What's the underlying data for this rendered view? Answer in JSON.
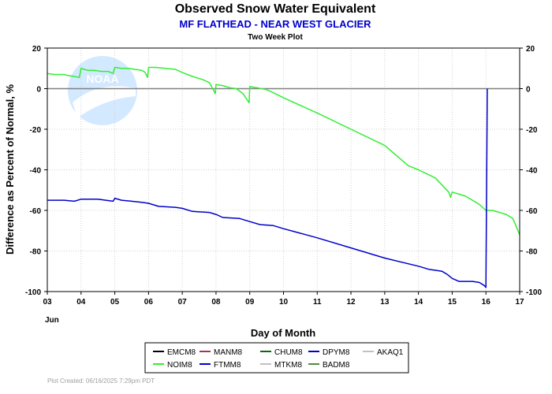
{
  "chart_data": {
    "type": "line",
    "title": "Observed Snow Water Equivalent",
    "subtitle": "MF FLATHEAD - NEAR WEST GLACIER",
    "caption": "Two Week Plot",
    "xlabel": "Day of Month",
    "x_month_label": "Jun",
    "ylabel": "Difference as Percent of Normal, %",
    "xlim": [
      3,
      17
    ],
    "ylim": [
      -100,
      20
    ],
    "x_ticks": [
      "03",
      "04",
      "05",
      "06",
      "07",
      "08",
      "09",
      "10",
      "11",
      "12",
      "13",
      "14",
      "15",
      "16",
      "17"
    ],
    "y_ticks": [
      20,
      0,
      -20,
      -40,
      -60,
      -80,
      -100
    ],
    "grid": true,
    "reference_line": 0,
    "colors": {
      "subtitle": "#0000cc",
      "zero_line": "#808080"
    },
    "series": [
      {
        "name": "NOIM8",
        "color": "#33ee33",
        "points": [
          [
            3.0,
            7.5
          ],
          [
            3.2,
            7.0
          ],
          [
            3.5,
            7.0
          ],
          [
            3.6,
            6.5
          ],
          [
            3.8,
            6.0
          ],
          [
            3.95,
            5.5
          ],
          [
            4.0,
            10.0
          ],
          [
            4.1,
            9.5
          ],
          [
            4.2,
            9.0
          ],
          [
            4.4,
            9.0
          ],
          [
            4.6,
            8.5
          ],
          [
            4.8,
            8.5
          ],
          [
            4.95,
            7.5
          ],
          [
            5.0,
            10.5
          ],
          [
            5.2,
            10.0
          ],
          [
            5.4,
            10.0
          ],
          [
            5.6,
            9.5
          ],
          [
            5.8,
            9.0
          ],
          [
            5.9,
            8.0
          ],
          [
            5.97,
            5.5
          ],
          [
            6.0,
            10.5
          ],
          [
            6.2,
            10.5
          ],
          [
            6.5,
            10.0
          ],
          [
            6.8,
            9.5
          ],
          [
            7.0,
            8.0
          ],
          [
            7.3,
            6.0
          ],
          [
            7.6,
            4.5
          ],
          [
            7.8,
            3.0
          ],
          [
            7.9,
            0.0
          ],
          [
            7.98,
            -2.5
          ],
          [
            8.0,
            2.0
          ],
          [
            8.2,
            1.5
          ],
          [
            8.4,
            0.5
          ],
          [
            8.6,
            0.0
          ],
          [
            8.8,
            -2.5
          ],
          [
            8.98,
            -7.0
          ],
          [
            9.0,
            1.0
          ],
          [
            9.2,
            0.5
          ],
          [
            9.5,
            -0.5
          ],
          [
            9.7,
            -2.0
          ],
          [
            10.0,
            -4.5
          ],
          [
            11.0,
            -12.0
          ],
          [
            12.0,
            -20.0
          ],
          [
            13.0,
            -28.0
          ],
          [
            13.7,
            -38.0
          ],
          [
            14.0,
            -40.0
          ],
          [
            14.5,
            -44.0
          ],
          [
            14.9,
            -51.0
          ],
          [
            14.95,
            -53.5
          ],
          [
            15.0,
            -51.0
          ],
          [
            15.2,
            -52.0
          ],
          [
            15.4,
            -53.0
          ],
          [
            15.6,
            -55.0
          ],
          [
            15.8,
            -57.0
          ],
          [
            16.0,
            -60.0
          ],
          [
            16.2,
            -60.0
          ],
          [
            16.4,
            -61.0
          ],
          [
            16.6,
            -62.0
          ],
          [
            16.8,
            -64.0
          ],
          [
            16.9,
            -68.0
          ],
          [
            17.0,
            -72.0
          ]
        ]
      },
      {
        "name": "FTMM8",
        "color": "#0000cc",
        "points": [
          [
            3.0,
            -55.0
          ],
          [
            3.5,
            -55.0
          ],
          [
            3.8,
            -55.5
          ],
          [
            4.0,
            -54.5
          ],
          [
            4.5,
            -54.5
          ],
          [
            4.95,
            -55.5
          ],
          [
            5.0,
            -54.0
          ],
          [
            5.2,
            -55.0
          ],
          [
            5.5,
            -55.5
          ],
          [
            5.8,
            -56.0
          ],
          [
            6.0,
            -56.5
          ],
          [
            6.3,
            -58.0
          ],
          [
            6.8,
            -58.5
          ],
          [
            7.0,
            -59.0
          ],
          [
            7.3,
            -60.5
          ],
          [
            7.8,
            -61.0
          ],
          [
            8.0,
            -62.0
          ],
          [
            8.2,
            -63.5
          ],
          [
            8.7,
            -64.0
          ],
          [
            9.0,
            -65.5
          ],
          [
            9.3,
            -67.0
          ],
          [
            9.7,
            -67.5
          ],
          [
            10.0,
            -69.0
          ],
          [
            11.0,
            -73.5
          ],
          [
            12.0,
            -78.5
          ],
          [
            13.0,
            -83.5
          ],
          [
            14.0,
            -87.5
          ],
          [
            14.3,
            -89.0
          ],
          [
            14.7,
            -90.0
          ],
          [
            14.85,
            -91.5
          ],
          [
            15.0,
            -93.5
          ],
          [
            15.2,
            -95.0
          ],
          [
            15.6,
            -95.0
          ],
          [
            15.8,
            -95.5
          ],
          [
            15.95,
            -97.0
          ],
          [
            16.0,
            -98.0
          ],
          [
            16.01,
            -75.0
          ],
          [
            16.03,
            -25.0
          ],
          [
            16.04,
            0.0
          ]
        ]
      }
    ],
    "legend": {
      "placement": "bottom",
      "entries": [
        {
          "name": "EMCM8",
          "color": "#000000"
        },
        {
          "name": "MANM8",
          "color": "#aa3355"
        },
        {
          "name": "CHUM8",
          "color": "#116611"
        },
        {
          "name": "DPYM8",
          "color": "#0000cc"
        },
        {
          "name": "AKAQ1",
          "color": "#c0c0c0"
        },
        {
          "name": "NOIM8",
          "color": "#33ee33"
        },
        {
          "name": "FTMM8",
          "color": "#0000cc"
        },
        {
          "name": "MTKM8",
          "color": "#c0c0c0"
        },
        {
          "name": "BADM8",
          "color": "#558844"
        }
      ]
    },
    "watermark": {
      "text": "NOAA",
      "fill": "#a8d4ff"
    }
  },
  "footer": "Plot Created: 06/16/2025 7:29pm PDT"
}
